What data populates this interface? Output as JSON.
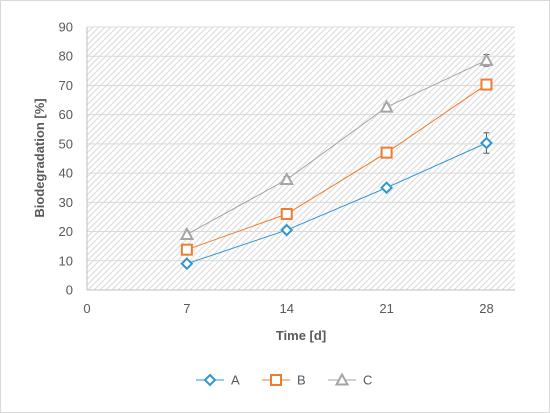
{
  "chart_data": {
    "type": "line",
    "title": "",
    "xlabel": "Time [d]",
    "ylabel": "Biodegradation [%]",
    "xlim": [
      0,
      30
    ],
    "ylim": [
      0,
      90
    ],
    "x_ticks": [
      "0",
      "7",
      "14",
      "21",
      "28"
    ],
    "y_ticks": [
      "0",
      "10",
      "20",
      "30",
      "40",
      "50",
      "60",
      "70",
      "80",
      "90"
    ],
    "x": [
      7,
      14,
      21,
      28
    ],
    "grid": true,
    "background_pattern": "diagonal-hatch",
    "legend_position": "bottom",
    "series": [
      {
        "name": "A",
        "values": [
          9,
          20.5,
          35,
          50.3
        ],
        "errors": [
          0.8,
          1,
          1,
          3.5
        ],
        "color": "#2e97d1",
        "marker": "diamond"
      },
      {
        "name": "B",
        "values": [
          13.8,
          26,
          47,
          70.3
        ],
        "errors": [
          0.8,
          1,
          1,
          1.5
        ],
        "color": "#ed7d31",
        "marker": "square"
      },
      {
        "name": "C",
        "values": [
          19,
          37.8,
          62.6,
          78.6
        ],
        "errors": [
          0.8,
          1,
          1,
          2
        ],
        "color": "#a5a5a5",
        "marker": "triangle"
      }
    ]
  }
}
